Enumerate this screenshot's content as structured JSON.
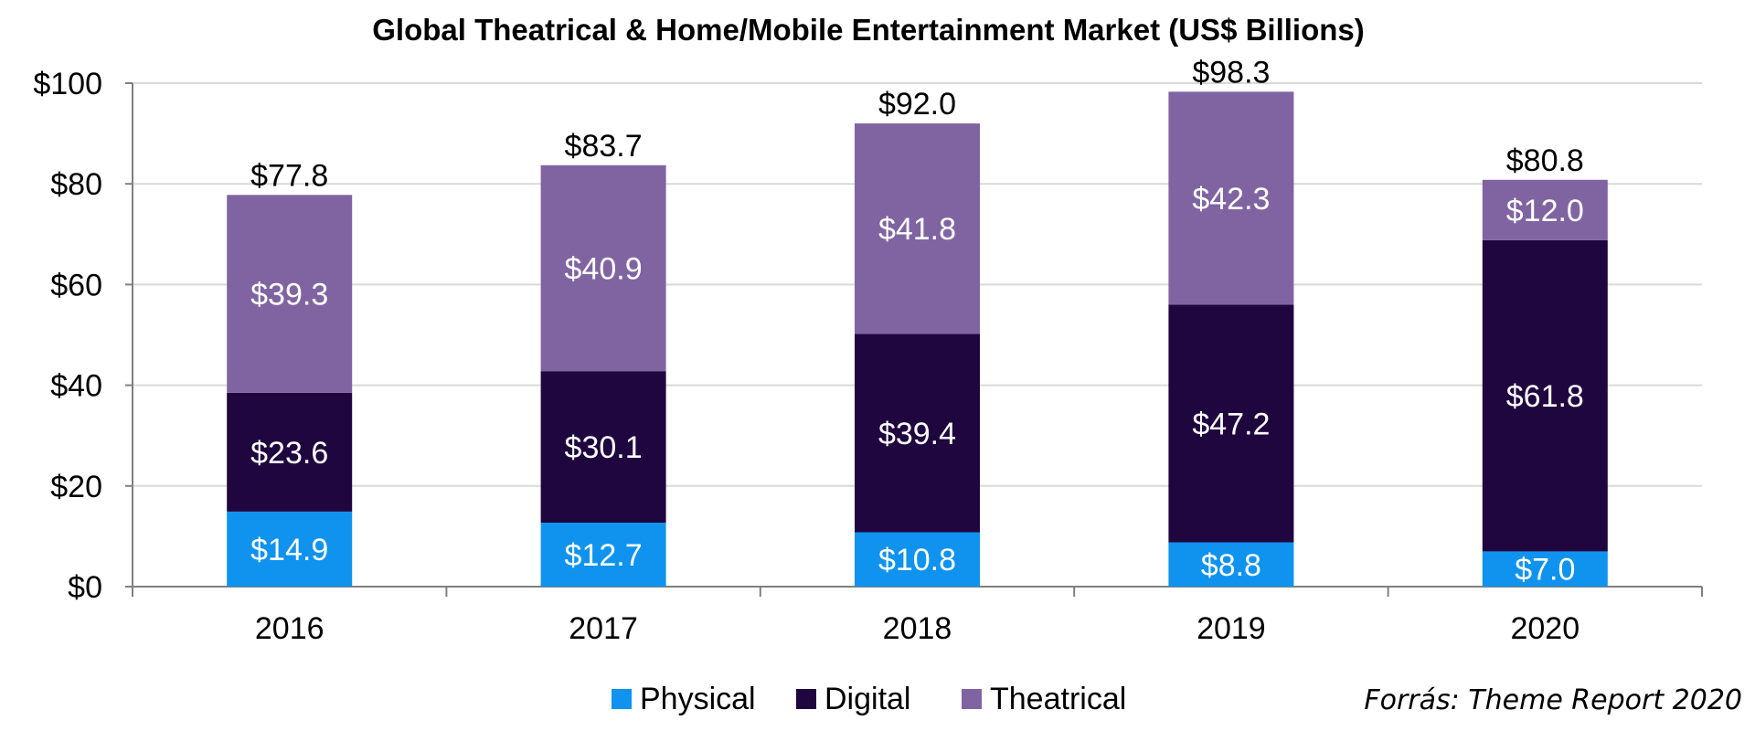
{
  "chart_data": {
    "type": "bar",
    "stacked": true,
    "title": "Global Theatrical & Home/Mobile Entertainment Market (US$ Billions)",
    "categories": [
      "2016",
      "2017",
      "2018",
      "2019",
      "2020"
    ],
    "series": [
      {
        "name": "Physical",
        "color": "#0f93ef",
        "values": [
          14.9,
          12.7,
          10.8,
          8.8,
          7.0
        ],
        "labels": [
          "$14.9",
          "$12.7",
          "$10.8",
          "$8.8",
          "$7.0"
        ]
      },
      {
        "name": "Digital",
        "color": "#20063f",
        "values": [
          23.6,
          30.1,
          39.4,
          47.2,
          61.8
        ],
        "labels": [
          "$23.6",
          "$30.1",
          "$39.4",
          "$47.2",
          "$61.8"
        ]
      },
      {
        "name": "Theatrical",
        "color": "#8064a2",
        "values": [
          39.3,
          40.9,
          41.8,
          42.3,
          12.0
        ],
        "labels": [
          "$39.3",
          "$40.9",
          "$41.8",
          "$42.3",
          "$12.0"
        ]
      }
    ],
    "totals": [
      "$77.8",
      "$83.7",
      "$92.0",
      "$98.3",
      "$80.8"
    ],
    "ylim": [
      0,
      100
    ],
    "yticks": [
      0,
      20,
      40,
      60,
      80,
      100
    ],
    "ytick_labels": [
      "$0",
      "$20",
      "$40",
      "$60",
      "$80",
      "$100"
    ],
    "grid": true,
    "legend_position": "bottom-center",
    "source_note": "Forrás: Theme Report 2020"
  }
}
